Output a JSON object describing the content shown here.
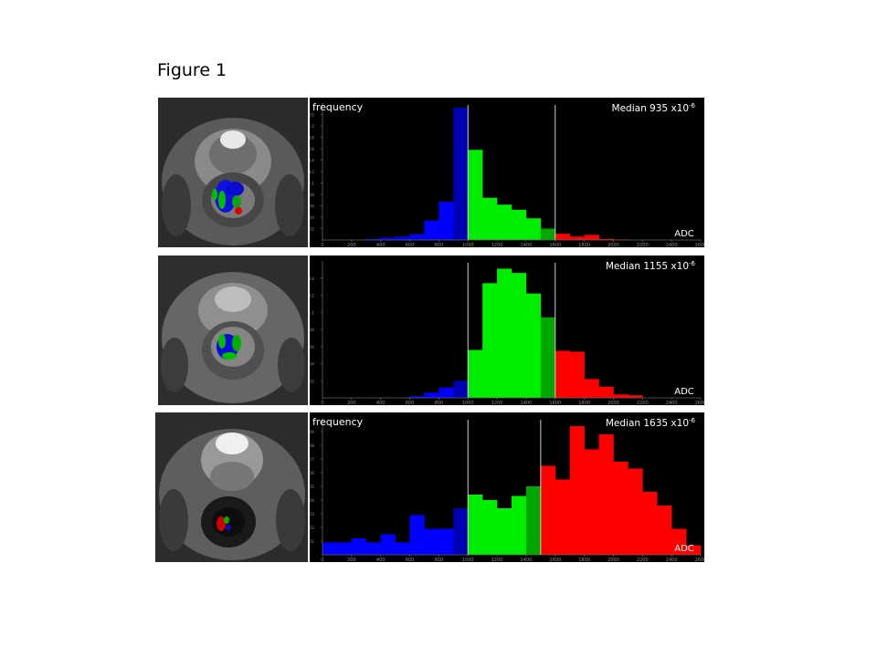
{
  "figure": {
    "title": "Figure 1"
  },
  "colors": {
    "low": "#0000ff",
    "mid": "#00ee00",
    "high": "#ff0000",
    "divider": "#cfcfcf",
    "background": "#000000"
  },
  "chart_data": [
    {
      "type": "bar",
      "ylabel": "frequency",
      "xlabel": "ADC",
      "annotation": "Median 935 x10",
      "annotation_exp": "-6",
      "median": 935,
      "thresholds": [
        1000,
        1600
      ],
      "xlim": [
        0,
        2600
      ],
      "ylim": [
        0,
        0.24
      ],
      "xticks": [
        0,
        200,
        400,
        600,
        800,
        1000,
        1200,
        1400,
        1600,
        1800,
        2000,
        2200,
        2400,
        2600
      ],
      "yticks": [
        0.02,
        0.04,
        0.06,
        0.08,
        0.1,
        0.12,
        0.14,
        0.16,
        0.18,
        0.2,
        0.22
      ],
      "bin_width": 100,
      "bins": [
        300,
        400,
        500,
        600,
        700,
        800,
        900,
        1000,
        1100,
        1200,
        1300,
        1400,
        1500,
        1600,
        1700,
        1800,
        1900,
        2000
      ],
      "values": [
        0.002,
        0.004,
        0.006,
        0.01,
        0.034,
        0.067,
        0.232,
        0.158,
        0.074,
        0.062,
        0.053,
        0.038,
        0.02,
        0.011,
        0.006,
        0.009,
        0.002,
        0.001
      ]
    },
    {
      "type": "bar",
      "ylabel": "",
      "xlabel": "ADC",
      "annotation": "Median 1155 x10",
      "annotation_exp": "-6",
      "median": 1155,
      "thresholds": [
        1000,
        1600
      ],
      "xlim": [
        0,
        2600
      ],
      "ylim": [
        0,
        0.16
      ],
      "xticks": [
        0,
        200,
        400,
        600,
        800,
        1000,
        1200,
        1400,
        1600,
        1800,
        2000,
        2200,
        2400,
        2600
      ],
      "yticks": [
        0.02,
        0.04,
        0.06,
        0.08,
        0.1,
        0.12,
        0.14
      ],
      "bin_width": 100,
      "bins": [
        600,
        700,
        800,
        900,
        1000,
        1100,
        1200,
        1300,
        1400,
        1500,
        1600,
        1700,
        1800,
        1900,
        2000,
        2100
      ],
      "values": [
        0.002,
        0.006,
        0.012,
        0.02,
        0.056,
        0.134,
        0.151,
        0.146,
        0.122,
        0.094,
        0.055,
        0.054,
        0.022,
        0.013,
        0.004,
        0.003
      ]
    },
    {
      "type": "bar",
      "ylabel": "frequency",
      "xlabel": "ADC",
      "annotation": "Median 1635 x10",
      "annotation_exp": "-6",
      "median": 1635,
      "thresholds": [
        1000,
        1500
      ],
      "xlim": [
        0,
        2600
      ],
      "ylim": [
        0,
        0.1
      ],
      "xticks": [
        0,
        200,
        400,
        600,
        800,
        1000,
        1200,
        1400,
        1600,
        1800,
        2000,
        2200,
        2400,
        2600
      ],
      "yticks": [
        0.01,
        0.02,
        0.03,
        0.04,
        0.05,
        0.06,
        0.07,
        0.08,
        0.09
      ],
      "bin_width": 100,
      "bins": [
        0,
        100,
        200,
        300,
        400,
        500,
        600,
        700,
        800,
        900,
        1000,
        1100,
        1200,
        1300,
        1400,
        1500,
        1600,
        1700,
        1800,
        1900,
        2000,
        2100,
        2200,
        2300,
        2400,
        2500
      ],
      "values": [
        0.009,
        0.009,
        0.012,
        0.009,
        0.015,
        0.009,
        0.029,
        0.019,
        0.019,
        0.034,
        0.044,
        0.04,
        0.034,
        0.043,
        0.05,
        0.065,
        0.055,
        0.094,
        0.077,
        0.088,
        0.068,
        0.063,
        0.046,
        0.036,
        0.019,
        0.007
      ]
    }
  ]
}
